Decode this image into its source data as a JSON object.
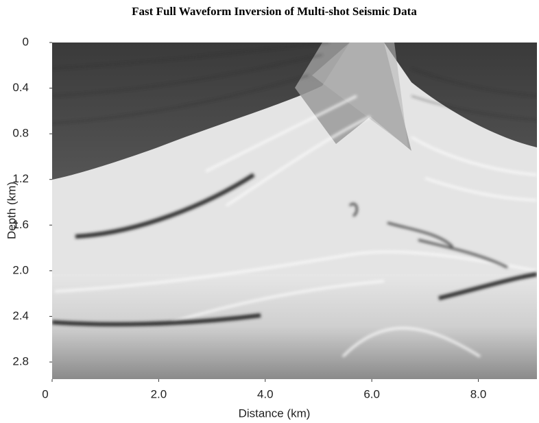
{
  "chart_data": {
    "type": "image",
    "title": "Fast Full Waveform Inversion of Multi-shot Seismic Data",
    "x_label": "Distance (km)",
    "y_label": "Depth (km)",
    "xlim": [
      0,
      9.1
    ],
    "ylim": [
      2.95,
      0
    ],
    "xticks": [
      0,
      {
        "value": 2,
        "label": "2.0"
      },
      {
        "value": 4,
        "label": "4.0"
      },
      {
        "value": 6,
        "label": "6.0"
      },
      {
        "value": 8,
        "label": "8.0"
      }
    ],
    "yticks": [
      0,
      0.4,
      0.8,
      1.2,
      1.6,
      {
        "value": 2,
        "label": "2.0"
      },
      2.4,
      2.8
    ]
  }
}
